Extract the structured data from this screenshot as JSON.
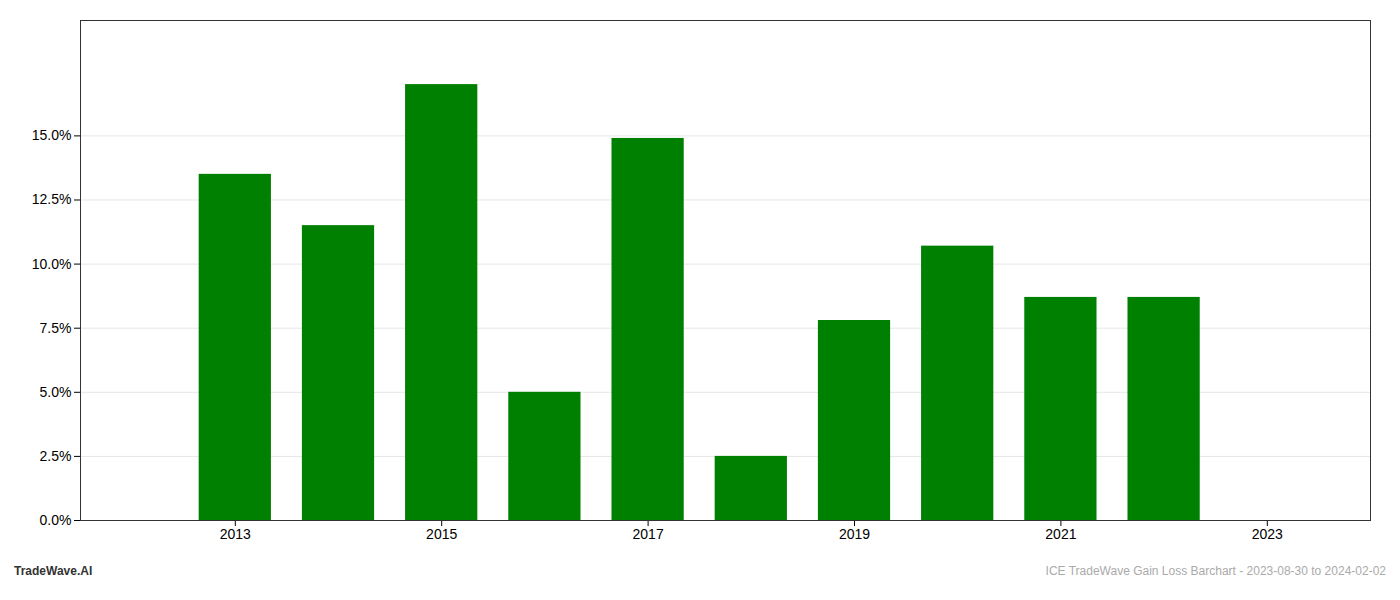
{
  "chart_data": {
    "type": "bar",
    "x": [
      2013,
      2014,
      2015,
      2016,
      2017,
      2018,
      2019,
      2020,
      2021,
      2022
    ],
    "values": [
      0.135,
      0.115,
      0.17,
      0.05,
      0.149,
      0.025,
      0.078,
      0.107,
      0.087,
      0.087
    ],
    "color": "#008000",
    "xlim": [
      2011.5,
      2024.0
    ],
    "xticks": [
      2013,
      2015,
      2017,
      2019,
      2021,
      2023
    ],
    "ylim": [
      0.0,
      0.195
    ],
    "yticks": [
      {
        "value": 0.0,
        "label": "0.0%"
      },
      {
        "value": 0.025,
        "label": "2.5%"
      },
      {
        "value": 0.05,
        "label": "5.0%"
      },
      {
        "value": 0.075,
        "label": "7.5%"
      },
      {
        "value": 0.1,
        "label": "10.0%"
      },
      {
        "value": 0.125,
        "label": "12.5%"
      },
      {
        "value": 0.15,
        "label": "15.0%"
      }
    ],
    "grid": true,
    "annotations": [
      "TradeWave.AI",
      "ICE TradeWave Gain Loss Barchart - 2023-08-30 to 2024-02-02"
    ]
  }
}
